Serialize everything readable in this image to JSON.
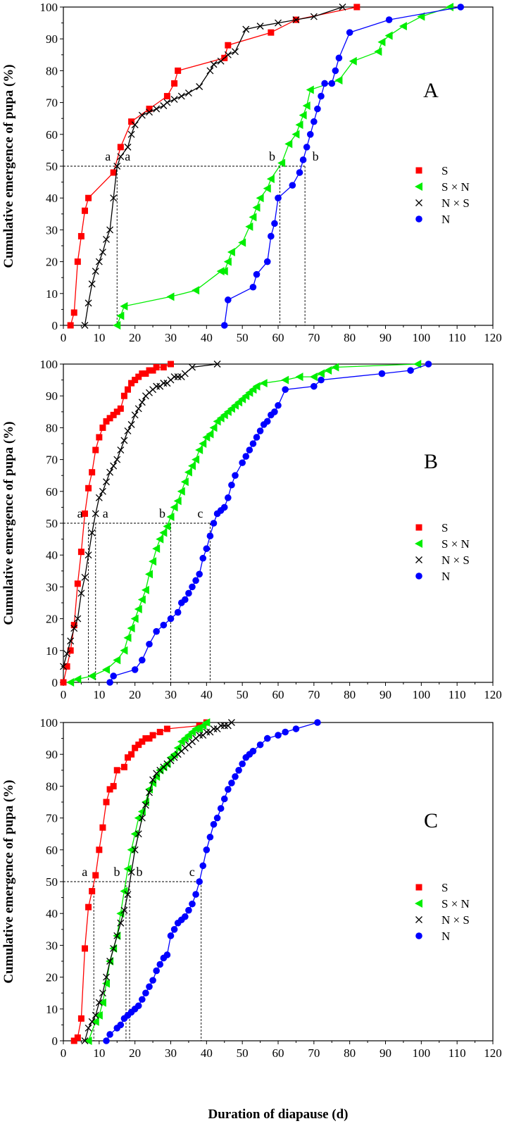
{
  "figure": {
    "xlabel": "Duration of diapause (d)",
    "ylabel": "Cumulative emergence of pupa (%)"
  },
  "series_style": [
    {
      "key": "S",
      "color": "#ff0000",
      "marker": "square"
    },
    {
      "key": "SxN",
      "color": "#00ee00",
      "marker": "triangle-left"
    },
    {
      "key": "NxS",
      "color": "#000000",
      "marker": "x"
    },
    {
      "key": "N",
      "color": "#0000ff",
      "marker": "circle"
    }
  ],
  "chart_data": [
    {
      "type": "line",
      "panel": "A",
      "xlim": [
        0,
        120
      ],
      "ylim": [
        0,
        100
      ],
      "xticks": [
        0,
        10,
        20,
        30,
        40,
        50,
        60,
        70,
        80,
        90,
        100,
        110,
        120
      ],
      "yticks": [
        0,
        10,
        20,
        30,
        40,
        50,
        60,
        70,
        80,
        90,
        100
      ],
      "legend": [
        "S",
        "S × N",
        "N × S",
        "N"
      ],
      "series": [
        {
          "name": "S",
          "x": [
            2,
            3,
            4,
            5,
            6,
            7,
            14,
            16,
            19,
            24,
            29,
            31,
            32,
            45,
            46,
            58,
            65,
            82
          ],
          "y": [
            0,
            4,
            20,
            28,
            36,
            40,
            48,
            56,
            64,
            68,
            72,
            76,
            80,
            84,
            88,
            92,
            96,
            100
          ]
        },
        {
          "name": "S × N",
          "x": [
            15,
            16,
            17,
            30,
            37,
            44,
            45,
            46,
            47,
            50,
            52,
            53,
            54,
            55,
            57,
            58,
            61,
            63,
            65,
            66,
            67,
            68,
            69,
            77,
            81,
            88,
            89,
            91,
            95,
            100,
            108
          ],
          "y": [
            0,
            3,
            6,
            9,
            11,
            17,
            17,
            20,
            23,
            26,
            31,
            34,
            37,
            40,
            43,
            46,
            51,
            57,
            60,
            63,
            66,
            69,
            74,
            77,
            83,
            86,
            89,
            91,
            94,
            97,
            100
          ]
        },
        {
          "name": "N × S",
          "x": [
            6,
            7,
            8,
            9,
            10,
            11,
            12,
            13,
            14,
            15,
            16,
            18,
            19,
            20,
            22,
            24,
            26,
            28,
            29,
            31,
            33,
            35,
            38,
            41,
            42,
            44,
            46,
            48,
            51,
            55,
            60,
            65,
            70,
            78
          ],
          "y": [
            0,
            7,
            13,
            17,
            20,
            23,
            27,
            30,
            40,
            50,
            53,
            56,
            60,
            63,
            66,
            67,
            68,
            69,
            70,
            71,
            72,
            73,
            75,
            80,
            82,
            83,
            85,
            86,
            93,
            94,
            95,
            96,
            97,
            100
          ]
        },
        {
          "name": "N",
          "x": [
            45,
            46,
            53,
            54,
            57,
            58,
            59,
            60,
            64,
            66,
            67,
            68,
            69,
            70,
            71,
            72,
            73,
            75,
            76,
            77,
            80,
            91,
            111
          ],
          "y": [
            0,
            8,
            12,
            16,
            20,
            28,
            32,
            40,
            44,
            48,
            52,
            56,
            60,
            64,
            68,
            72,
            76,
            76,
            80,
            84,
            92,
            96,
            100
          ]
        }
      ],
      "annotations": [
        {
          "text": "a",
          "x": 15,
          "y": 50
        },
        {
          "text": "a",
          "x": 15,
          "y": 50
        },
        {
          "text": "b",
          "x": 60.5,
          "y": 50
        },
        {
          "text": "b",
          "x": 67.5,
          "y": 50
        }
      ],
      "reference_lines": {
        "y": 50,
        "x": [
          15,
          60.5,
          67.5
        ]
      }
    },
    {
      "type": "line",
      "panel": "B",
      "xlim": [
        0,
        120
      ],
      "ylim": [
        0,
        100
      ],
      "xticks": [
        0,
        10,
        20,
        30,
        40,
        50,
        60,
        70,
        80,
        90,
        100,
        110,
        120
      ],
      "yticks": [
        0,
        10,
        20,
        30,
        40,
        50,
        60,
        70,
        80,
        90,
        100
      ],
      "legend": [
        "S",
        "S × N",
        "N × S",
        "N"
      ],
      "series": [
        {
          "name": "S",
          "x": [
            0,
            1,
            2,
            3,
            4,
            5,
            6,
            7,
            8,
            9,
            10,
            11,
            12,
            13,
            14,
            15,
            16,
            17,
            18,
            19,
            20,
            21,
            22,
            23,
            24,
            25,
            26,
            28,
            30
          ],
          "y": [
            0,
            5,
            10,
            18,
            31,
            41,
            53,
            61,
            66,
            73,
            77,
            80,
            82,
            83,
            84,
            85,
            86,
            90,
            92,
            94,
            95,
            96,
            97,
            97,
            98,
            98,
            99,
            99,
            100
          ]
        },
        {
          "name": "S × N",
          "x": [
            2,
            4,
            8,
            12,
            15,
            17,
            18,
            19,
            20,
            21,
            22,
            23,
            24,
            25,
            26,
            27,
            28,
            29,
            30,
            31,
            32,
            33,
            34,
            35,
            36,
            37,
            38,
            39,
            40,
            41,
            42,
            43,
            44,
            45,
            46,
            47,
            48,
            49,
            50,
            51,
            52,
            53,
            54,
            56,
            62,
            66,
            70,
            72,
            74,
            76,
            99
          ],
          "y": [
            0,
            1,
            2,
            4,
            7,
            10,
            14,
            17,
            20,
            23,
            26,
            29,
            34,
            38,
            42,
            45,
            47,
            49,
            52,
            55,
            57,
            60,
            63,
            66,
            68,
            70,
            73,
            75,
            77,
            78,
            80,
            82,
            83,
            84,
            85,
            86,
            87,
            88,
            89,
            90,
            91,
            92,
            93,
            94,
            95,
            96,
            96,
            97,
            98,
            99,
            100
          ]
        },
        {
          "name": "N × S",
          "x": [
            0,
            1,
            2,
            3,
            4,
            5,
            6,
            7,
            8,
            9,
            10,
            11,
            12,
            13,
            14,
            15,
            16,
            17,
            18,
            19,
            20,
            21,
            22,
            23,
            24,
            25,
            26,
            27,
            28,
            29,
            30,
            31,
            32,
            33,
            34,
            36,
            43
          ],
          "y": [
            5,
            9,
            13,
            17,
            20,
            28,
            33,
            40,
            47,
            53,
            58,
            60,
            63,
            66,
            68,
            70,
            73,
            76,
            79,
            81,
            84,
            86,
            88,
            90,
            91,
            92,
            93,
            93,
            94,
            94,
            95,
            96,
            96,
            96,
            97,
            99,
            100
          ]
        },
        {
          "name": "N",
          "x": [
            13,
            14,
            20,
            22,
            24,
            26,
            28,
            30,
            32,
            33,
            34,
            35,
            36,
            37,
            38,
            39,
            40,
            41,
            42,
            43,
            44,
            45,
            46,
            47,
            48,
            50,
            51,
            52,
            53,
            54,
            55,
            56,
            57,
            58,
            59,
            60,
            62,
            70,
            72,
            89,
            97,
            102
          ],
          "y": [
            0,
            2,
            4,
            7,
            12,
            16,
            18,
            20,
            22,
            25,
            26,
            28,
            30,
            32,
            34,
            39,
            42,
            46,
            50,
            53,
            54,
            55,
            58,
            62,
            65,
            69,
            71,
            73,
            75,
            77,
            79,
            81,
            82,
            84,
            85,
            87,
            92,
            93,
            95,
            97,
            98,
            100
          ]
        }
      ],
      "annotations": [
        {
          "text": "a",
          "x": 7,
          "y": 50
        },
        {
          "text": "a",
          "x": 9,
          "y": 50
        },
        {
          "text": "b",
          "x": 30,
          "y": 50
        },
        {
          "text": "c",
          "x": 41,
          "y": 50
        }
      ],
      "reference_lines": {
        "y": 50,
        "x": [
          7,
          9,
          30,
          41
        ]
      }
    },
    {
      "type": "line",
      "panel": "C",
      "xlim": [
        0,
        120
      ],
      "ylim": [
        0,
        100
      ],
      "xticks": [
        0,
        10,
        20,
        30,
        40,
        50,
        60,
        70,
        80,
        90,
        100,
        110,
        120
      ],
      "yticks": [
        0,
        10,
        20,
        30,
        40,
        50,
        60,
        70,
        80,
        90,
        100
      ],
      "legend": [
        "S",
        "S × N",
        "N × S",
        "N"
      ],
      "series": [
        {
          "name": "S",
          "x": [
            3,
            4,
            5,
            6,
            7,
            8,
            9,
            10,
            11,
            12,
            13,
            14,
            15,
            17,
            18,
            19,
            20,
            21,
            22,
            23,
            24,
            25,
            27,
            29,
            38,
            40
          ],
          "y": [
            0,
            1,
            7,
            29,
            42,
            47,
            52,
            60,
            67,
            75,
            79,
            80,
            85,
            86,
            89,
            90,
            92,
            93,
            94,
            95,
            95,
            96,
            97,
            98,
            99,
            100
          ]
        },
        {
          "name": "S × N",
          "x": [
            7,
            9,
            10,
            11,
            12,
            13,
            14,
            15,
            16,
            17,
            18,
            19,
            20,
            21,
            22,
            23,
            24,
            25,
            26,
            27,
            28,
            29,
            30,
            31,
            32,
            33,
            34,
            35,
            36,
            37,
            38,
            39,
            40
          ],
          "y": [
            0,
            6,
            8,
            12,
            18,
            25,
            29,
            33,
            40,
            47,
            54,
            60,
            65,
            70,
            72,
            75,
            79,
            81,
            83,
            85,
            86,
            87,
            89,
            90,
            92,
            94,
            95,
            96,
            97,
            98,
            98,
            99,
            100
          ]
        },
        {
          "name": "N × S",
          "x": [
            6,
            7,
            8,
            9,
            10,
            11,
            12,
            13,
            14,
            15,
            16,
            17,
            18,
            19,
            20,
            21,
            22,
            23,
            24,
            25,
            26,
            27,
            28,
            29,
            30,
            31,
            32,
            33,
            34,
            35,
            36,
            37,
            38,
            39,
            40,
            41,
            42,
            43,
            44,
            45,
            46,
            47
          ],
          "y": [
            0,
            4,
            6,
            8,
            12,
            15,
            20,
            25,
            29,
            33,
            37,
            41,
            46,
            53,
            60,
            65,
            70,
            74,
            78,
            82,
            84,
            85,
            86,
            87,
            88,
            89,
            90,
            91,
            92,
            93,
            94,
            95,
            96,
            96,
            97,
            97,
            98,
            98,
            99,
            99,
            99,
            100
          ]
        },
        {
          "name": "N",
          "x": [
            12,
            13,
            15,
            16,
            17,
            18,
            19,
            20,
            21,
            22,
            23,
            24,
            25,
            26,
            27,
            28,
            29,
            30,
            31,
            32,
            33,
            34,
            35,
            36,
            37,
            38,
            39,
            40,
            41,
            42,
            43,
            44,
            45,
            46,
            47,
            48,
            49,
            50,
            51,
            52,
            53,
            55,
            57,
            60,
            62,
            65,
            71
          ],
          "y": [
            0,
            2,
            4,
            5,
            7,
            8,
            9,
            10,
            11,
            13,
            15,
            17,
            19,
            22,
            24,
            26,
            27,
            33,
            35,
            37,
            38,
            39,
            41,
            43,
            46,
            50,
            55,
            60,
            64,
            68,
            70,
            73,
            76,
            79,
            81,
            83,
            85,
            87,
            89,
            90,
            91,
            93,
            95,
            96,
            97,
            98,
            100
          ]
        }
      ],
      "annotations": [
        {
          "text": "a",
          "x": 8.5,
          "y": 50
        },
        {
          "text": "b",
          "x": 17.5,
          "y": 50
        },
        {
          "text": "b",
          "x": 18.5,
          "y": 50
        },
        {
          "text": "c",
          "x": 38.5,
          "y": 50
        }
      ],
      "reference_lines": {
        "y": 50,
        "x": [
          8.5,
          17.5,
          18.5,
          38.5
        ]
      }
    }
  ]
}
